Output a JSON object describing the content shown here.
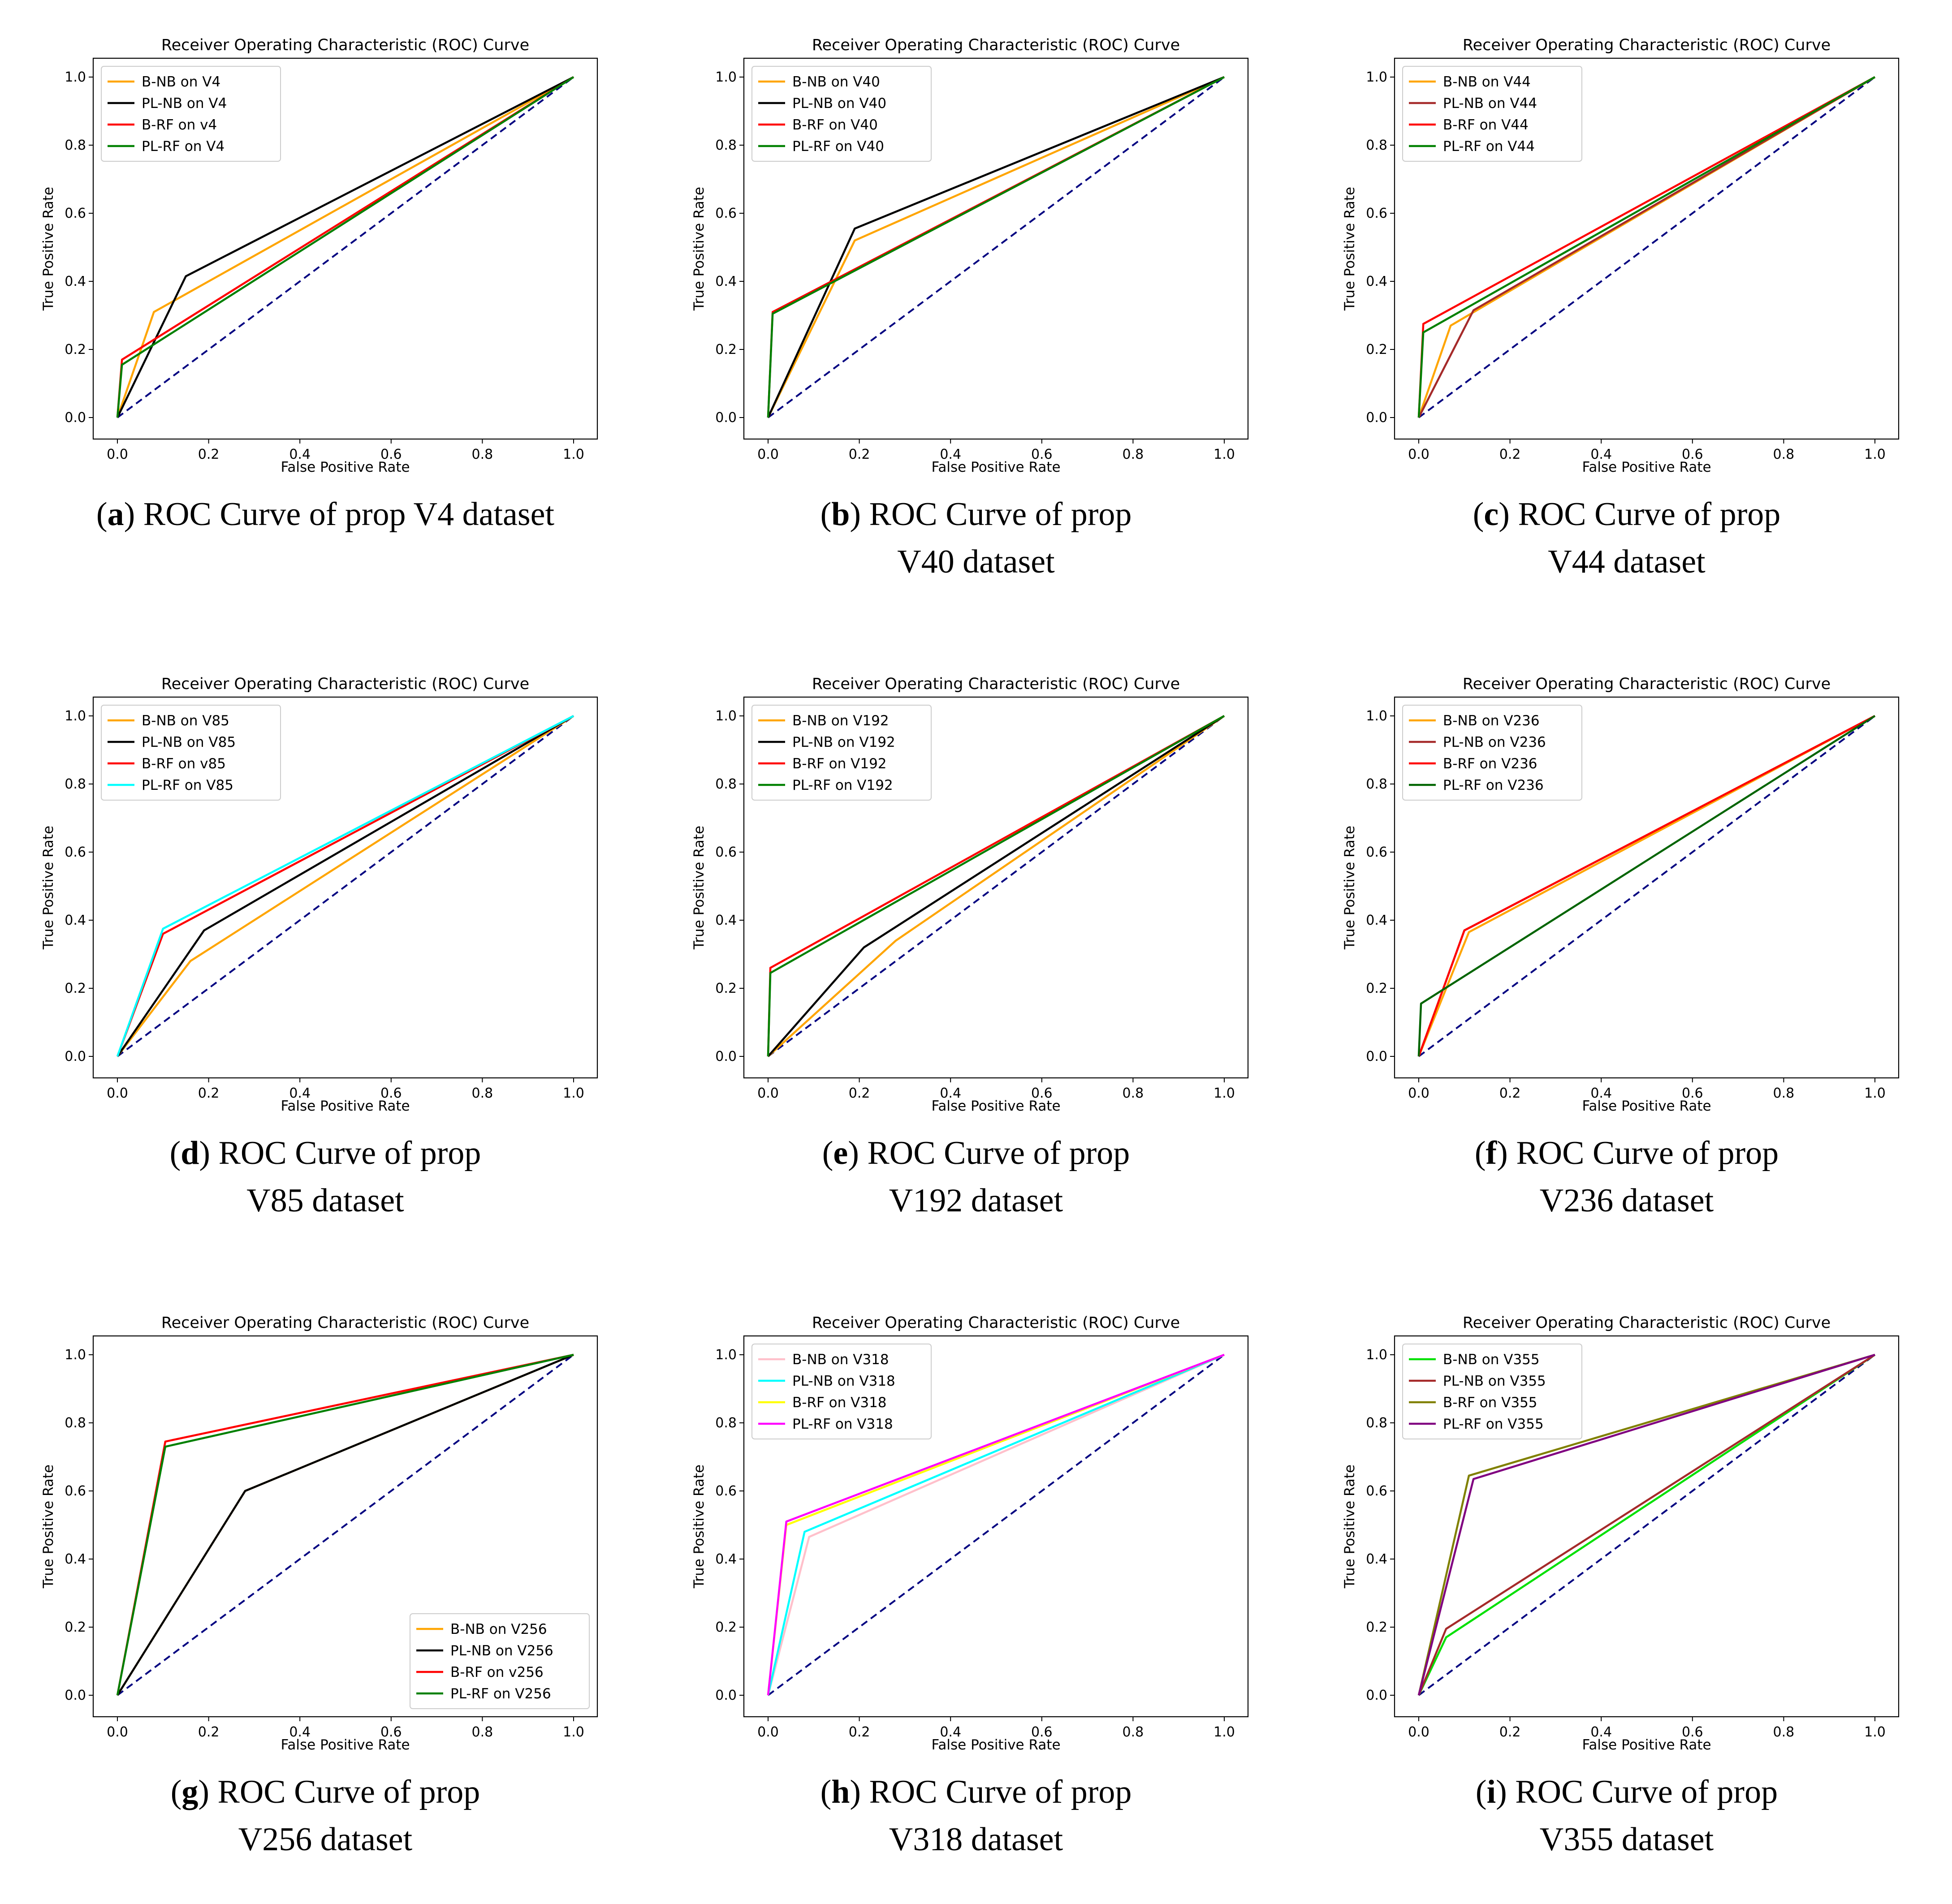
{
  "chart_data": [
    {
      "type": "line",
      "letter": "a",
      "caption_text": "ROC Curve of prop V4 dataset",
      "caption_lines": [
        "ROC Curve of prop V4 dataset"
      ],
      "title": "Receiver Operating Characteristic (ROC) Curve",
      "xlabel": "False Positive Rate",
      "ylabel": "True Positive Rate",
      "xlim": [
        0,
        1
      ],
      "ylim": [
        0,
        1
      ],
      "xticks": [
        "0.0",
        "0.2",
        "0.4",
        "0.6",
        "0.8",
        "1.0"
      ],
      "yticks": [
        "0.0",
        "0.2",
        "0.4",
        "0.6",
        "0.8",
        "1.0"
      ],
      "legend_position": "upper left",
      "series": [
        {
          "name": "B-NB on V4",
          "color": "#ffa500",
          "x": [
            0,
            0.08,
            1
          ],
          "y": [
            0,
            0.31,
            1
          ]
        },
        {
          "name": "PL-NB on V4",
          "color": "#000000",
          "x": [
            0,
            0.15,
            1
          ],
          "y": [
            0,
            0.415,
            1
          ]
        },
        {
          "name": "B-RF on v4",
          "color": "#ff0000",
          "x": [
            0,
            0.01,
            1
          ],
          "y": [
            0,
            0.17,
            1
          ]
        },
        {
          "name": "PL-RF on V4",
          "color": "#008000",
          "x": [
            0,
            0.01,
            1
          ],
          "y": [
            0,
            0.155,
            1
          ]
        }
      ],
      "baseline": {
        "color": "#000080",
        "x": [
          0,
          1
        ],
        "y": [
          0,
          1
        ]
      }
    },
    {
      "type": "line",
      "letter": "b",
      "caption_text": "ROC Curve of prop V40 dataset",
      "caption_lines": [
        "ROC Curve of prop",
        "V40 dataset"
      ],
      "title": "Receiver Operating Characteristic (ROC) Curve",
      "xlabel": "False Positive Rate",
      "ylabel": "True Positive Rate",
      "xlim": [
        0,
        1
      ],
      "ylim": [
        0,
        1
      ],
      "xticks": [
        "0.0",
        "0.2",
        "0.4",
        "0.6",
        "0.8",
        "1.0"
      ],
      "yticks": [
        "0.0",
        "0.2",
        "0.4",
        "0.6",
        "0.8",
        "1.0"
      ],
      "legend_position": "upper left",
      "series": [
        {
          "name": "B-NB on V40",
          "color": "#ffa500",
          "x": [
            0,
            0.19,
            1
          ],
          "y": [
            0,
            0.52,
            1
          ]
        },
        {
          "name": "PL-NB on V40",
          "color": "#000000",
          "x": [
            0,
            0.19,
            1
          ],
          "y": [
            0,
            0.555,
            1
          ]
        },
        {
          "name": "B-RF on V40",
          "color": "#ff0000",
          "x": [
            0,
            0.01,
            1
          ],
          "y": [
            0,
            0.31,
            1
          ]
        },
        {
          "name": "PL-RF on V40",
          "color": "#008000",
          "x": [
            0,
            0.01,
            1
          ],
          "y": [
            0,
            0.305,
            1
          ]
        }
      ],
      "baseline": {
        "color": "#000080",
        "x": [
          0,
          1
        ],
        "y": [
          0,
          1
        ]
      }
    },
    {
      "type": "line",
      "letter": "c",
      "caption_text": "ROC Curve of prop V44 dataset",
      "caption_lines": [
        "ROC Curve of prop",
        "V44 dataset"
      ],
      "title": "Receiver Operating Characteristic (ROC) Curve",
      "xlabel": "False Positive Rate",
      "ylabel": "True Positive Rate",
      "xlim": [
        0,
        1
      ],
      "ylim": [
        0,
        1
      ],
      "xticks": [
        "0.0",
        "0.2",
        "0.4",
        "0.6",
        "0.8",
        "1.0"
      ],
      "yticks": [
        "0.0",
        "0.2",
        "0.4",
        "0.6",
        "0.8",
        "1.0"
      ],
      "legend_position": "upper left",
      "series": [
        {
          "name": "B-NB on V44",
          "color": "#ffa500",
          "x": [
            0,
            0.07,
            1
          ],
          "y": [
            0,
            0.27,
            1
          ]
        },
        {
          "name": "PL-NB on V44",
          "color": "#a52a2a",
          "x": [
            0,
            0.12,
            1
          ],
          "y": [
            0,
            0.315,
            1
          ]
        },
        {
          "name": "B-RF on V44",
          "color": "#ff0000",
          "x": [
            0,
            0.01,
            1
          ],
          "y": [
            0,
            0.275,
            1
          ]
        },
        {
          "name": "PL-RF on V44",
          "color": "#008000",
          "x": [
            0,
            0.01,
            1
          ],
          "y": [
            0,
            0.25,
            1
          ]
        }
      ],
      "baseline": {
        "color": "#000080",
        "x": [
          0,
          1
        ],
        "y": [
          0,
          1
        ]
      }
    },
    {
      "type": "line",
      "letter": "d",
      "caption_text": "ROC Curve of prop V85 dataset",
      "caption_lines": [
        "ROC Curve of prop",
        "V85 dataset"
      ],
      "title": "Receiver Operating Characteristic (ROC) Curve",
      "xlabel": "False Positive Rate",
      "ylabel": "True Positive Rate",
      "xlim": [
        0,
        1
      ],
      "ylim": [
        0,
        1
      ],
      "xticks": [
        "0.0",
        "0.2",
        "0.4",
        "0.6",
        "0.8",
        "1.0"
      ],
      "yticks": [
        "0.0",
        "0.2",
        "0.4",
        "0.6",
        "0.8",
        "1.0"
      ],
      "legend_position": "upper left",
      "series": [
        {
          "name": "B-NB on V85",
          "color": "#ffa500",
          "x": [
            0,
            0.16,
            1
          ],
          "y": [
            0,
            0.28,
            1
          ]
        },
        {
          "name": "PL-NB on V85",
          "color": "#000000",
          "x": [
            0,
            0.19,
            1
          ],
          "y": [
            0,
            0.37,
            1
          ]
        },
        {
          "name": "B-RF on v85",
          "color": "#ff0000",
          "x": [
            0,
            0.1,
            1
          ],
          "y": [
            0,
            0.36,
            1
          ]
        },
        {
          "name": "PL-RF on V85",
          "color": "#00ffff",
          "x": [
            0,
            0.1,
            1
          ],
          "y": [
            0,
            0.375,
            1
          ]
        }
      ],
      "baseline": {
        "color": "#000080",
        "x": [
          0,
          1
        ],
        "y": [
          0,
          1
        ]
      }
    },
    {
      "type": "line",
      "letter": "e",
      "caption_text": "ROC Curve of prop V192 dataset",
      "caption_lines": [
        "ROC Curve of prop",
        "V192 dataset"
      ],
      "title": "Receiver Operating Characteristic (ROC) Curve",
      "xlabel": "False Positive Rate",
      "ylabel": "True Positive Rate",
      "xlim": [
        0,
        1
      ],
      "ylim": [
        0,
        1
      ],
      "xticks": [
        "0.0",
        "0.2",
        "0.4",
        "0.6",
        "0.8",
        "1.0"
      ],
      "yticks": [
        "0.0",
        "0.2",
        "0.4",
        "0.6",
        "0.8",
        "1.0"
      ],
      "legend_position": "upper left",
      "series": [
        {
          "name": "B-NB on V192",
          "color": "#ffa500",
          "x": [
            0,
            0.28,
            1
          ],
          "y": [
            0,
            0.34,
            1
          ]
        },
        {
          "name": "PL-NB on V192",
          "color": "#000000",
          "x": [
            0,
            0.21,
            1
          ],
          "y": [
            0,
            0.32,
            1
          ]
        },
        {
          "name": "B-RF on V192",
          "color": "#ff0000",
          "x": [
            0,
            0.005,
            1
          ],
          "y": [
            0,
            0.26,
            1
          ]
        },
        {
          "name": "PL-RF on V192",
          "color": "#008000",
          "x": [
            0,
            0.005,
            1
          ],
          "y": [
            0,
            0.245,
            1
          ]
        }
      ],
      "baseline": {
        "color": "#000080",
        "x": [
          0,
          1
        ],
        "y": [
          0,
          1
        ]
      }
    },
    {
      "type": "line",
      "letter": "f",
      "caption_text": "ROC Curve of prop V236 dataset",
      "caption_lines": [
        "ROC Curve of prop",
        "V236 dataset"
      ],
      "title": "Receiver Operating Characteristic (ROC) Curve",
      "xlabel": "False Positive Rate",
      "ylabel": "True Positive Rate",
      "xlim": [
        0,
        1
      ],
      "ylim": [
        0,
        1
      ],
      "xticks": [
        "0.0",
        "0.2",
        "0.4",
        "0.6",
        "0.8",
        "1.0"
      ],
      "yticks": [
        "0.0",
        "0.2",
        "0.4",
        "0.6",
        "0.8",
        "1.0"
      ],
      "legend_position": "upper left",
      "series": [
        {
          "name": "B-NB on V236",
          "color": "#ffa500",
          "x": [
            0,
            0.11,
            1
          ],
          "y": [
            0,
            0.365,
            1
          ]
        },
        {
          "name": "PL-NB on V236",
          "color": "#a52a2a",
          "x": [
            0,
            0.1,
            1
          ],
          "y": [
            0,
            0.37,
            1
          ]
        },
        {
          "name": "B-RF on V236",
          "color": "#ff0000",
          "x": [
            0,
            0.1,
            1
          ],
          "y": [
            0,
            0.37,
            1
          ]
        },
        {
          "name": "PL-RF on V236",
          "color": "#006400",
          "x": [
            0,
            0.005,
            1
          ],
          "y": [
            0,
            0.155,
            1
          ]
        }
      ],
      "baseline": {
        "color": "#000080",
        "x": [
          0,
          1
        ],
        "y": [
          0,
          1
        ]
      }
    },
    {
      "type": "line",
      "letter": "g",
      "caption_text": "ROC Curve of prop V256 dataset",
      "caption_lines": [
        "ROC Curve of prop",
        "V256 dataset"
      ],
      "title": "Receiver Operating Characteristic (ROC) Curve",
      "xlabel": "False Positive Rate",
      "ylabel": "True Positive Rate",
      "xlim": [
        0,
        1
      ],
      "ylim": [
        0,
        1
      ],
      "xticks": [
        "0.0",
        "0.2",
        "0.4",
        "0.6",
        "0.8",
        "1.0"
      ],
      "yticks": [
        "0.0",
        "0.2",
        "0.4",
        "0.6",
        "0.8",
        "1.0"
      ],
      "legend_position": "lower right",
      "series": [
        {
          "name": "B-NB on V256",
          "color": "#ffa500",
          "x": [
            0,
            0.28,
            1
          ],
          "y": [
            0,
            0.6,
            1
          ]
        },
        {
          "name": "PL-NB on V256",
          "color": "#000000",
          "x": [
            0,
            0.28,
            1
          ],
          "y": [
            0,
            0.6,
            1
          ]
        },
        {
          "name": "B-RF on v256",
          "color": "#ff0000",
          "x": [
            0,
            0.105,
            1
          ],
          "y": [
            0,
            0.745,
            1
          ]
        },
        {
          "name": "PL-RF on V256",
          "color": "#008000",
          "x": [
            0,
            0.105,
            1
          ],
          "y": [
            0,
            0.73,
            1
          ]
        }
      ],
      "baseline": {
        "color": "#000080",
        "x": [
          0,
          1
        ],
        "y": [
          0,
          1
        ]
      }
    },
    {
      "type": "line",
      "letter": "h",
      "caption_text": "ROC Curve of prop V318 dataset",
      "caption_lines": [
        "ROC Curve of prop",
        "V318 dataset"
      ],
      "title": "Receiver Operating Characteristic (ROC) Curve",
      "xlabel": "False Positive Rate",
      "ylabel": "True Positive Rate",
      "xlim": [
        0,
        1
      ],
      "ylim": [
        0,
        1
      ],
      "xticks": [
        "0.0",
        "0.2",
        "0.4",
        "0.6",
        "0.8",
        "1.0"
      ],
      "yticks": [
        "0.0",
        "0.2",
        "0.4",
        "0.6",
        "0.8",
        "1.0"
      ],
      "legend_position": "upper left",
      "series": [
        {
          "name": "B-NB on V318",
          "color": "#ffc0cb",
          "x": [
            0,
            0.09,
            1
          ],
          "y": [
            0,
            0.465,
            1
          ]
        },
        {
          "name": "PL-NB on V318",
          "color": "#00ffff",
          "x": [
            0,
            0.08,
            1
          ],
          "y": [
            0,
            0.48,
            1
          ]
        },
        {
          "name": "B-RF on V318",
          "color": "#ffff00",
          "x": [
            0,
            0.04,
            1
          ],
          "y": [
            0,
            0.5,
            1
          ]
        },
        {
          "name": "PL-RF on V318",
          "color": "#ff00ff",
          "x": [
            0,
            0.04,
            1
          ],
          "y": [
            0,
            0.51,
            1
          ]
        }
      ],
      "baseline": {
        "color": "#000080",
        "x": [
          0,
          1
        ],
        "y": [
          0,
          1
        ]
      }
    },
    {
      "type": "line",
      "letter": "i",
      "caption_text": "ROC Curve of prop V355 dataset",
      "caption_lines": [
        "ROC Curve of prop",
        "V355 dataset"
      ],
      "title": "Receiver Operating Characteristic (ROC) Curve",
      "xlabel": "False Positive Rate",
      "ylabel": "True Positive Rate",
      "xlim": [
        0,
        1
      ],
      "ylim": [
        0,
        1
      ],
      "xticks": [
        "0.0",
        "0.2",
        "0.4",
        "0.6",
        "0.8",
        "1.0"
      ],
      "yticks": [
        "0.0",
        "0.2",
        "0.4",
        "0.6",
        "0.8",
        "1.0"
      ],
      "legend_position": "upper left",
      "series": [
        {
          "name": "B-NB on V355",
          "color": "#00e000",
          "x": [
            0,
            0.06,
            1
          ],
          "y": [
            0,
            0.17,
            1
          ]
        },
        {
          "name": "PL-NB on V355",
          "color": "#a52a2a",
          "x": [
            0,
            0.06,
            1
          ],
          "y": [
            0,
            0.195,
            1
          ]
        },
        {
          "name": "B-RF on V355",
          "color": "#808000",
          "x": [
            0,
            0.11,
            1
          ],
          "y": [
            0,
            0.645,
            1
          ]
        },
        {
          "name": "PL-RF on V355",
          "color": "#800080",
          "x": [
            0,
            0.12,
            1
          ],
          "y": [
            0,
            0.635,
            1
          ]
        }
      ],
      "baseline": {
        "color": "#000080",
        "x": [
          0,
          1
        ],
        "y": [
          0,
          1
        ]
      }
    }
  ]
}
